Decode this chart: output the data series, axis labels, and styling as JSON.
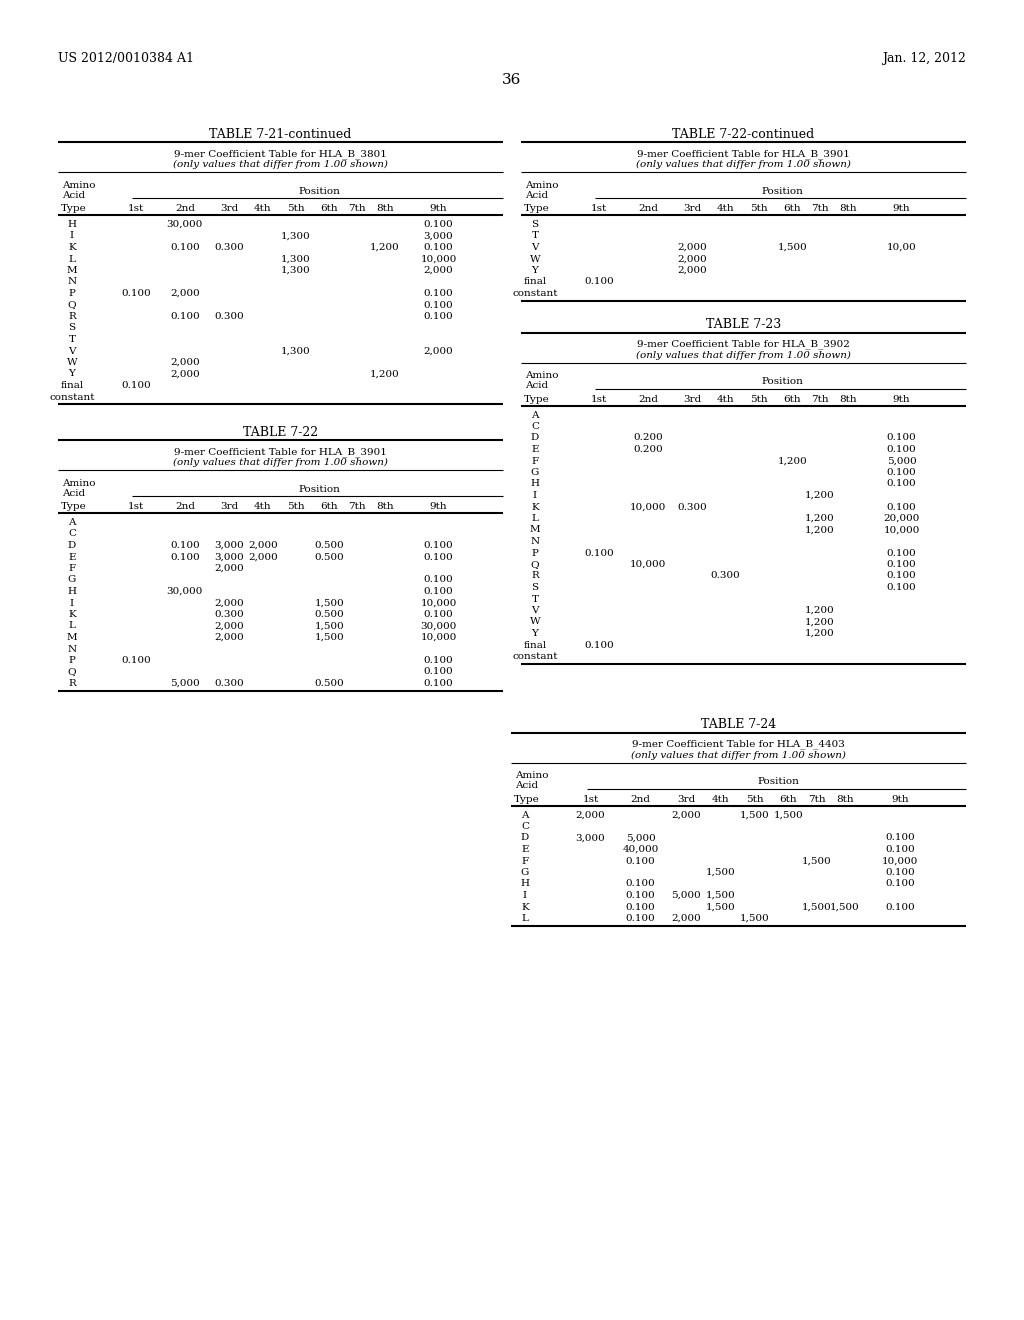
{
  "page_header_left": "US 2012/0010384 A1",
  "page_header_right": "Jan. 12, 2012",
  "page_number": "36",
  "background_color": "#ffffff",
  "text_color": "#000000",
  "tables": [
    {
      "id": "table_7_21",
      "title": "TABLE 7-21-continued",
      "subtitle1": "9-mer Coefficient Table for HLA—B—3801",
      "subtitle1_plain": "9-mer Coefficient Table for HLA_B_3801",
      "subtitle2": "(only values that differ from 1.00 shown)",
      "columns": [
        "Type",
        "1st",
        "2nd",
        "3rd",
        "4th",
        "5th",
        "6th",
        "7th",
        "8th",
        "9th"
      ],
      "rows": [
        [
          "H",
          "",
          "30,000",
          "",
          "",
          "",
          "",
          "",
          "",
          "0.100"
        ],
        [
          "I",
          "",
          "",
          "",
          "",
          "1,300",
          "",
          "",
          "",
          "3,000"
        ],
        [
          "K",
          "",
          "0.100",
          "0.300",
          "",
          "",
          "",
          "",
          "1,200",
          "0.100"
        ],
        [
          "L",
          "",
          "",
          "",
          "",
          "1,300",
          "",
          "",
          "",
          "10,000"
        ],
        [
          "M",
          "",
          "",
          "",
          "",
          "1,300",
          "",
          "",
          "",
          "2,000"
        ],
        [
          "N",
          "",
          "",
          "",
          "",
          "",
          "",
          "",
          "",
          ""
        ],
        [
          "P",
          "0.100",
          "2,000",
          "",
          "",
          "",
          "",
          "",
          "",
          "0.100"
        ],
        [
          "Q",
          "",
          "",
          "",
          "",
          "",
          "",
          "",
          "",
          "0.100"
        ],
        [
          "R",
          "",
          "0.100",
          "0.300",
          "",
          "",
          "",
          "",
          "",
          "0.100"
        ],
        [
          "S",
          "",
          "",
          "",
          "",
          "",
          "",
          "",
          "",
          ""
        ],
        [
          "T",
          "",
          "",
          "",
          "",
          "",
          "",
          "",
          "",
          ""
        ],
        [
          "V",
          "",
          "",
          "",
          "",
          "1,300",
          "",
          "",
          "",
          "2,000"
        ],
        [
          "W",
          "",
          "2,000",
          "",
          "",
          "",
          "",
          "",
          "",
          ""
        ],
        [
          "Y",
          "",
          "2,000",
          "",
          "",
          "",
          "",
          "",
          "1,200",
          ""
        ],
        [
          "final",
          "0.100",
          "",
          "",
          "",
          "",
          "",
          "",
          "",
          ""
        ],
        [
          "constant",
          "",
          "",
          "",
          "",
          "",
          "",
          "",
          "",
          ""
        ]
      ]
    },
    {
      "id": "table_7_22",
      "title": "TABLE 7-22",
      "subtitle1_plain": "9-mer Coefficient Table for HLA_B_3901",
      "subtitle2": "(only values that differ from 1.00 shown)",
      "columns": [
        "Type",
        "1st",
        "2nd",
        "3rd",
        "4th",
        "5th",
        "6th",
        "7th",
        "8th",
        "9th"
      ],
      "rows": [
        [
          "A",
          "",
          "",
          "",
          "",
          "",
          "",
          "",
          "",
          ""
        ],
        [
          "C",
          "",
          "",
          "",
          "",
          "",
          "",
          "",
          "",
          ""
        ],
        [
          "D",
          "",
          "0.100",
          "3,000",
          "2,000",
          "",
          "0.500",
          "",
          "",
          "0.100"
        ],
        [
          "E",
          "",
          "0.100",
          "3,000",
          "2,000",
          "",
          "0.500",
          "",
          "",
          "0.100"
        ],
        [
          "F",
          "",
          "",
          "2,000",
          "",
          "",
          "",
          "",
          "",
          ""
        ],
        [
          "G",
          "",
          "",
          "",
          "",
          "",
          "",
          "",
          "",
          "0.100"
        ],
        [
          "H",
          "",
          "30,000",
          "",
          "",
          "",
          "",
          "",
          "",
          "0.100"
        ],
        [
          "I",
          "",
          "",
          "2,000",
          "",
          "",
          "1,500",
          "",
          "",
          "10,000"
        ],
        [
          "K",
          "",
          "",
          "0.300",
          "",
          "",
          "0.500",
          "",
          "",
          "0.100"
        ],
        [
          "L",
          "",
          "",
          "2,000",
          "",
          "",
          "1,500",
          "",
          "",
          "30,000"
        ],
        [
          "M",
          "",
          "",
          "2,000",
          "",
          "",
          "1,500",
          "",
          "",
          "10,000"
        ],
        [
          "N",
          "",
          "",
          "",
          "",
          "",
          "",
          "",
          "",
          ""
        ],
        [
          "P",
          "0.100",
          "",
          "",
          "",
          "",
          "",
          "",
          "",
          "0.100"
        ],
        [
          "Q",
          "",
          "",
          "",
          "",
          "",
          "",
          "",
          "",
          "0.100"
        ],
        [
          "R",
          "",
          "5,000",
          "0.300",
          "",
          "",
          "0.500",
          "",
          "",
          "0.100"
        ]
      ]
    },
    {
      "id": "table_7_22_cont",
      "title": "TABLE 7-22-continued",
      "subtitle1_plain": "9-mer Coefficient Table for HLA_B_3901",
      "subtitle2": "(only values that differ from 1.00 shown)",
      "columns": [
        "Type",
        "1st",
        "2nd",
        "3rd",
        "4th",
        "5th",
        "6th",
        "7th",
        "8th",
        "9th"
      ],
      "rows": [
        [
          "S",
          "",
          "",
          "",
          "",
          "",
          "",
          "",
          "",
          ""
        ],
        [
          "T",
          "",
          "",
          "",
          "",
          "",
          "",
          "",
          "",
          ""
        ],
        [
          "V",
          "",
          "",
          "2,000",
          "",
          "",
          "1,500",
          "",
          "",
          "10,00"
        ],
        [
          "W",
          "",
          "",
          "2,000",
          "",
          "",
          "",
          "",
          "",
          ""
        ],
        [
          "Y",
          "",
          "",
          "2,000",
          "",
          "",
          "",
          "",
          "",
          ""
        ],
        [
          "final",
          "0.100",
          "",
          "",
          "",
          "",
          "",
          "",
          "",
          ""
        ],
        [
          "constant",
          "",
          "",
          "",
          "",
          "",
          "",
          "",
          "",
          ""
        ]
      ]
    },
    {
      "id": "table_7_23",
      "title": "TABLE 7-23",
      "subtitle1_plain": "9-mer Coefficient Table for HLA_B_3902",
      "subtitle2": "(only values that differ from 1.00 shown)",
      "columns": [
        "Type",
        "1st",
        "2nd",
        "3rd",
        "4th",
        "5th",
        "6th",
        "7th",
        "8th",
        "9th"
      ],
      "rows": [
        [
          "A",
          "",
          "",
          "",
          "",
          "",
          "",
          "",
          "",
          ""
        ],
        [
          "C",
          "",
          "",
          "",
          "",
          "",
          "",
          "",
          "",
          ""
        ],
        [
          "D",
          "",
          "0.200",
          "",
          "",
          "",
          "",
          "",
          "",
          "0.100"
        ],
        [
          "E",
          "",
          "0.200",
          "",
          "",
          "",
          "",
          "",
          "",
          "0.100"
        ],
        [
          "F",
          "",
          "",
          "",
          "",
          "",
          "1,200",
          "",
          "",
          "5,000"
        ],
        [
          "G",
          "",
          "",
          "",
          "",
          "",
          "",
          "",
          "",
          "0.100"
        ],
        [
          "H",
          "",
          "",
          "",
          "",
          "",
          "",
          "",
          "",
          "0.100"
        ],
        [
          "I",
          "",
          "",
          "",
          "",
          "",
          "",
          "1,200",
          "",
          ""
        ],
        [
          "K",
          "",
          "10,000",
          "0.300",
          "",
          "",
          "",
          "",
          "",
          "0.100"
        ],
        [
          "L",
          "",
          "",
          "",
          "",
          "",
          "",
          "1,200",
          "",
          "20,000"
        ],
        [
          "M",
          "",
          "",
          "",
          "",
          "",
          "",
          "1,200",
          "",
          "10,000"
        ],
        [
          "N",
          "",
          "",
          "",
          "",
          "",
          "",
          "",
          "",
          ""
        ],
        [
          "P",
          "0.100",
          "",
          "",
          "",
          "",
          "",
          "",
          "",
          "0.100"
        ],
        [
          "Q",
          "",
          "10,000",
          "",
          "",
          "",
          "",
          "",
          "",
          "0.100"
        ],
        [
          "R",
          "",
          "",
          "",
          "0.300",
          "",
          "",
          "",
          "",
          "0.100"
        ],
        [
          "S",
          "",
          "",
          "",
          "",
          "",
          "",
          "",
          "",
          "0.100"
        ],
        [
          "T",
          "",
          "",
          "",
          "",
          "",
          "",
          "",
          "",
          ""
        ],
        [
          "V",
          "",
          "",
          "",
          "",
          "",
          "",
          "1,200",
          "",
          ""
        ],
        [
          "W",
          "",
          "",
          "",
          "",
          "",
          "",
          "1,200",
          "",
          ""
        ],
        [
          "Y",
          "",
          "",
          "",
          "",
          "",
          "",
          "1,200",
          "",
          ""
        ],
        [
          "final",
          "0.100",
          "",
          "",
          "",
          "",
          "",
          "",
          "",
          ""
        ],
        [
          "constant",
          "",
          "",
          "",
          "",
          "",
          "",
          "",
          "",
          ""
        ]
      ]
    },
    {
      "id": "table_7_24",
      "title": "TABLE 7-24",
      "subtitle1_plain": "9-mer Coefficient Table for HLA_B_4403",
      "subtitle2": "(only values that differ from 1.00 shown)",
      "columns": [
        "Type",
        "1st",
        "2nd",
        "3rd",
        "4th",
        "5th",
        "6th",
        "7th",
        "8th",
        "9th"
      ],
      "rows": [
        [
          "A",
          "2,000",
          "",
          "2,000",
          "",
          "1,500",
          "1,500",
          "",
          "",
          ""
        ],
        [
          "C",
          "",
          "",
          "",
          "",
          "",
          "",
          "",
          "",
          ""
        ],
        [
          "D",
          "3,000",
          "5,000",
          "",
          "",
          "",
          "",
          "",
          "",
          "0.100"
        ],
        [
          "E",
          "",
          "40,000",
          "",
          "",
          "",
          "",
          "",
          "",
          "0.100"
        ],
        [
          "F",
          "",
          "0.100",
          "",
          "",
          "",
          "",
          "1,500",
          "",
          "10,000"
        ],
        [
          "G",
          "",
          "",
          "",
          "1,500",
          "",
          "",
          "",
          "",
          "0.100"
        ],
        [
          "H",
          "",
          "0.100",
          "",
          "",
          "",
          "",
          "",
          "",
          "0.100"
        ],
        [
          "I",
          "",
          "0.100",
          "5,000",
          "1,500",
          "",
          "",
          "",
          "",
          ""
        ],
        [
          "K",
          "",
          "0.100",
          "",
          "1,500",
          "",
          "",
          "1,500",
          "1,500",
          "0.100"
        ],
        [
          "L",
          "",
          "0.100",
          "2,000",
          "",
          "1,500",
          "",
          "",
          "",
          ""
        ]
      ]
    }
  ]
}
